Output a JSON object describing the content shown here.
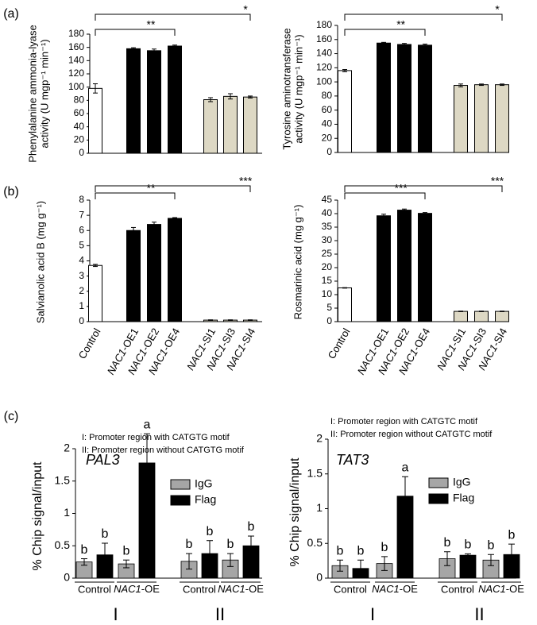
{
  "chart_data": [
    {
      "type": "bar",
      "panel": "(a)",
      "ylabel": [
        "Phenylalanine ammonia-lyase",
        "activity (U mgp⁻¹ min⁻¹)"
      ],
      "values": [
        98,
        158,
        155,
        162,
        81,
        86,
        85
      ],
      "errors": [
        7,
        1.5,
        2.5,
        1.5,
        3,
        4,
        1.5
      ],
      "colors": [
        "#ffffff",
        "#000000",
        "#000000",
        "#000000",
        "#ddd8c4",
        "#ddd8c4",
        "#ddd8c4"
      ],
      "ylim": [
        0,
        180
      ],
      "yticks": [
        0,
        20,
        40,
        60,
        80,
        100,
        120,
        140,
        160,
        180
      ],
      "brackets": [
        {
          "from": 0,
          "to": 3,
          "label": "**"
        },
        {
          "from": 0,
          "to": 6,
          "label": "*"
        }
      ]
    },
    {
      "type": "bar",
      "ylabel": [
        "Tyrosine aminotransferase",
        "activity (U mgp⁻¹ min⁻¹)"
      ],
      "values": [
        116,
        155,
        153,
        152,
        95,
        96,
        96
      ],
      "errors": [
        1.5,
        1,
        1.5,
        1.5,
        2,
        1,
        1
      ],
      "colors": [
        "#ffffff",
        "#000000",
        "#000000",
        "#000000",
        "#ddd8c4",
        "#ddd8c4",
        "#ddd8c4"
      ],
      "ylim": [
        0,
        180
      ],
      "yticks": [
        0,
        20,
        40,
        60,
        80,
        100,
        120,
        140,
        160,
        180
      ],
      "brackets": [
        {
          "from": 0,
          "to": 3,
          "label": "**"
        },
        {
          "from": 0,
          "to": 6,
          "label": "*"
        }
      ]
    },
    {
      "type": "bar",
      "panel": "(b)",
      "ylabel": [
        "Salvianolic acid B (mg g⁻¹)"
      ],
      "categories": [
        "Control",
        "NAC1-OE1",
        "NAC1-OE2",
        "NAC1-OE4",
        "NAC1-SI1",
        "NAC1-SI3",
        "NAC1-SI4"
      ],
      "values": [
        3.7,
        6.0,
        6.4,
        6.8,
        0.1,
        0.1,
        0.1
      ],
      "errors": [
        0.07,
        0.2,
        0.15,
        0.05,
        0.02,
        0.02,
        0.02
      ],
      "colors": [
        "#ffffff",
        "#000000",
        "#000000",
        "#000000",
        "#ddd8c4",
        "#ddd8c4",
        "#ddd8c4"
      ],
      "ylim": [
        0,
        8
      ],
      "yticks": [
        0,
        1,
        2,
        3,
        4,
        5,
        6,
        7,
        8
      ],
      "brackets": [
        {
          "from": 0,
          "to": 3,
          "label": "**"
        },
        {
          "from": 0,
          "to": 6,
          "label": "***"
        }
      ]
    },
    {
      "type": "bar",
      "ylabel": [
        "Rosmarinic acid (mg g⁻¹)"
      ],
      "categories": [
        "Control",
        "NAC1-OE1",
        "NAC1-OE2",
        "NAC1-OE4",
        "NAC1-SI1",
        "NAC1-SI3",
        "NAC1-SI4"
      ],
      "values": [
        12.5,
        39.2,
        41.3,
        40.1,
        3.8,
        3.8,
        3.8
      ],
      "errors": [
        0.1,
        0.6,
        0.4,
        0.3,
        0.1,
        0.1,
        0.1
      ],
      "colors": [
        "#ffffff",
        "#000000",
        "#000000",
        "#000000",
        "#ddd8c4",
        "#ddd8c4",
        "#ddd8c4"
      ],
      "ylim": [
        0,
        45
      ],
      "yticks": [
        0,
        5,
        10,
        15,
        20,
        25,
        30,
        35,
        40,
        45
      ],
      "brackets": [
        {
          "from": 0,
          "to": 3,
          "label": "***"
        },
        {
          "from": 0,
          "to": 6,
          "label": "***"
        }
      ]
    },
    {
      "type": "grouped_bar",
      "panel": "(c)",
      "title": "PAL3",
      "ylabel": [
        "% Chip signal/input"
      ],
      "annotations": [
        "I: Promoter region with CATGTG motif",
        "II: Promoter region without CATGTG motif"
      ],
      "categories": [
        "Control",
        "NAC1-OE",
        "Control",
        "NAC1-OE"
      ],
      "groups": [
        "I",
        "II"
      ],
      "series": [
        {
          "name": "IgG",
          "color": "#a6a6a6",
          "values": [
            0.25,
            0.22,
            0.26,
            0.28
          ],
          "errors": [
            0.05,
            0.06,
            0.12,
            0.1
          ],
          "letters": [
            "b",
            "b",
            "b",
            "b"
          ]
        },
        {
          "name": "Flag",
          "color": "#000000",
          "values": [
            0.36,
            1.78,
            0.38,
            0.5
          ],
          "errors": [
            0.18,
            0.45,
            0.2,
            0.15
          ],
          "letters": [
            "b",
            "a",
            "b",
            "b"
          ]
        }
      ],
      "ylim": [
        0,
        2
      ],
      "yticks": [
        0,
        0.5,
        1,
        1.5,
        2
      ]
    },
    {
      "type": "grouped_bar",
      "title": "TAT3",
      "ylabel": [
        "% Chip signal/input"
      ],
      "annotations": [
        "I: Promoter region with CATGTC motif",
        "II: Promoter region without CATGTC motif"
      ],
      "categories": [
        "Control",
        "NAC1-OE",
        "Control",
        "NAC1-OE"
      ],
      "groups": [
        "I",
        "II"
      ],
      "series": [
        {
          "name": "IgG",
          "color": "#a6a6a6",
          "values": [
            0.18,
            0.21,
            0.28,
            0.26
          ],
          "errors": [
            0.08,
            0.1,
            0.1,
            0.08
          ],
          "letters": [
            "b",
            "b",
            "b",
            "b"
          ]
        },
        {
          "name": "Flag",
          "color": "#000000",
          "values": [
            0.14,
            1.18,
            0.33,
            0.34
          ],
          "errors": [
            0.12,
            0.28,
            0.02,
            0.15
          ],
          "letters": [
            "b",
            "a",
            "b",
            "b"
          ]
        }
      ],
      "ylim": [
        0,
        2
      ],
      "yticks": [
        0,
        0.5,
        1,
        1.5,
        2
      ]
    }
  ]
}
